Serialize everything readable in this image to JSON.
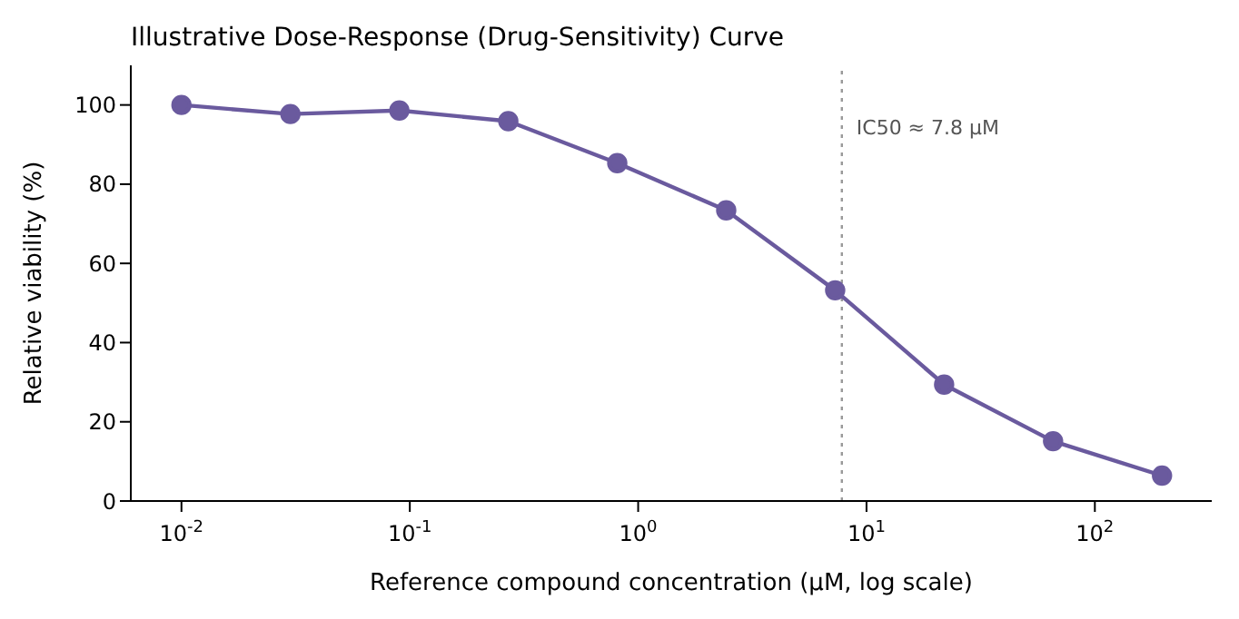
{
  "chart_data": {
    "type": "line",
    "title": "Illustrative Dose-Response (Drug-Sensitivity) Curve",
    "xlabel": "Reference compound concentration (μM, log scale)",
    "ylabel": "Relative viability (%)",
    "x": [
      0.01,
      0.03,
      0.09,
      0.27,
      0.81,
      2.43,
      7.29,
      21.87,
      65.61,
      196.83
    ],
    "series": [
      {
        "color": "#6a5a9e",
        "values": [
          100,
          97.7,
          98.6,
          95.9,
          85.3,
          73.4,
          53.2,
          29.4,
          15.1,
          6.4
        ]
      }
    ],
    "log": "x",
    "xlim": [
      0.006,
      325
    ],
    "xticks": [
      {
        "value": 0.01,
        "label": "10$^{-2}$"
      },
      {
        "value": 0.1,
        "label": "10$^{-1}$"
      },
      {
        "value": 1,
        "label": "10$^{0}$"
      },
      {
        "value": 10,
        "label": "10$^{1}$"
      },
      {
        "value": 100,
        "label": "10$^{2}$"
      }
    ],
    "ylim": [
      0,
      110
    ],
    "yticks": [
      0,
      20,
      40,
      60,
      80,
      100
    ],
    "grid": false,
    "legend": false,
    "marker": "circle",
    "line_style": "solid",
    "ref_lines": [
      {
        "axis": "x",
        "value": 7.8,
        "label": "IC50 ≈ 7.8 µM",
        "color": "#999999",
        "line_style": "dotted"
      }
    ]
  }
}
